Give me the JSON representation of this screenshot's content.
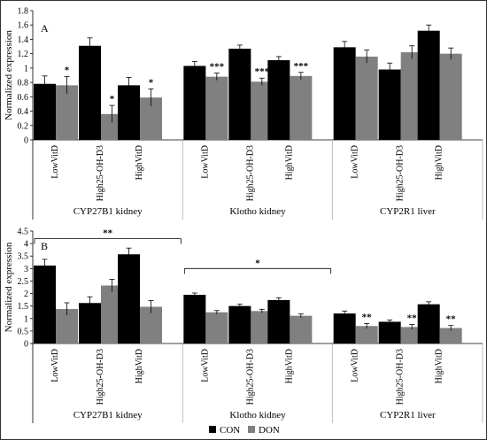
{
  "chart_data": [
    {
      "panel": "A",
      "type": "bar",
      "ylabel": "Normalized expression",
      "ylim": [
        0,
        1.8
      ],
      "yticks": [
        "0",
        "0.2",
        "0.4",
        "0.6",
        "0.8",
        "1",
        "1.2",
        "1.4",
        "1.6",
        "1.8"
      ],
      "ytick_values": [
        0,
        0.2,
        0.4,
        0.6,
        0.8,
        1.0,
        1.2,
        1.4,
        1.6,
        1.8
      ],
      "groups": [
        {
          "name": "CYP27B1 kidney",
          "categories": [
            "LowVitD",
            "High25-OH-D3",
            "HighVitD"
          ],
          "CON": [
            0.78,
            1.31,
            0.76
          ],
          "CON_err": [
            0.11,
            0.11,
            0.11
          ],
          "DON": [
            0.76,
            0.36,
            0.59
          ],
          "DON_err": [
            0.12,
            0.12,
            0.12
          ],
          "sig": [
            "*",
            "*",
            "*"
          ]
        },
        {
          "name": "Klotho kidney",
          "categories": [
            "LowVitD",
            "High25-OH-D3",
            "HighVitD"
          ],
          "CON": [
            1.03,
            1.27,
            1.11
          ],
          "CON_err": [
            0.06,
            0.05,
            0.05
          ],
          "DON": [
            0.88,
            0.81,
            0.89
          ],
          "DON_err": [
            0.05,
            0.05,
            0.05
          ],
          "sig": [
            "***",
            "***",
            "***"
          ]
        },
        {
          "name": "CYP2R1 liver",
          "categories": [
            "LowVitD",
            "High25-OH-D3",
            "HighVitD"
          ],
          "CON": [
            1.29,
            0.98,
            1.52
          ],
          "CON_err": [
            0.08,
            0.09,
            0.08
          ],
          "DON": [
            1.16,
            1.22,
            1.2
          ],
          "DON_err": [
            0.09,
            0.09,
            0.08
          ],
          "sig": [
            "",
            "",
            ""
          ]
        }
      ],
      "brackets": []
    },
    {
      "panel": "B",
      "type": "bar",
      "ylabel": "Normalized expression",
      "ylim": [
        0,
        4.5
      ],
      "yticks": [
        "0",
        "0.5",
        "1",
        "1.5",
        "2",
        "2.5",
        "3",
        "3.5",
        "4",
        "4.5"
      ],
      "ytick_values": [
        0,
        0.5,
        1.0,
        1.5,
        2.0,
        2.5,
        3.0,
        3.5,
        4.0,
        4.5
      ],
      "groups": [
        {
          "name": "CYP27B1 kidney",
          "categories": [
            "LowVitD",
            "High25-OH-D3",
            "HighVitD"
          ],
          "CON": [
            3.12,
            1.62,
            3.57
          ],
          "CON_err": [
            0.25,
            0.25,
            0.25
          ],
          "DON": [
            1.38,
            2.32,
            1.47
          ],
          "DON_err": [
            0.25,
            0.25,
            0.25
          ],
          "sig": [
            "",
            "",
            ""
          ]
        },
        {
          "name": "Klotho kidney",
          "categories": [
            "LowVitD",
            "High25-OH-D3",
            "HighVitD"
          ],
          "CON": [
            1.95,
            1.5,
            1.74
          ],
          "CON_err": [
            0.07,
            0.07,
            0.09
          ],
          "DON": [
            1.25,
            1.3,
            1.11
          ],
          "DON_err": [
            0.07,
            0.07,
            0.07
          ],
          "sig": [
            "",
            "",
            ""
          ]
        },
        {
          "name": "CYP2R1 liver",
          "categories": [
            "LowVitD",
            "High25-OH-D3",
            "HighVitD"
          ],
          "CON": [
            1.2,
            0.87,
            1.57
          ],
          "CON_err": [
            0.1,
            0.07,
            0.1
          ],
          "DON": [
            0.7,
            0.66,
            0.62
          ],
          "DON_err": [
            0.1,
            0.1,
            0.1
          ],
          "sig": [
            "**",
            "**",
            "**"
          ]
        }
      ],
      "brackets": [
        {
          "label": "**",
          "from_group": 0,
          "to_group": 0,
          "level": 4.2
        },
        {
          "label": "*",
          "from_group": 1,
          "to_group": 1,
          "level": 3.0
        }
      ]
    }
  ],
  "legend": {
    "placement": "bottom-center",
    "entries": [
      {
        "label": "CON",
        "color": "#000000"
      },
      {
        "label": "DON",
        "color": "#808080"
      }
    ]
  },
  "colors": {
    "con": "#000000",
    "don": "#808080",
    "axis": "#000000",
    "divider": "#b0b0b0"
  }
}
